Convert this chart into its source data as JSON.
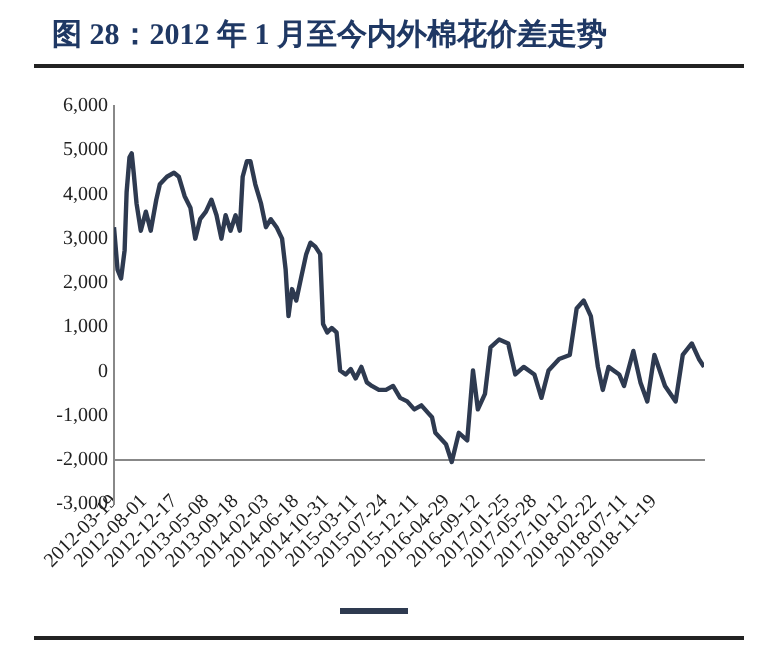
{
  "chart_data": {
    "type": "line",
    "title": "图 28：2012 年 1 月至今内外棉花价差走势",
    "x": [
      "2012-03-19",
      "2012-04-04",
      "2012-04-20",
      "2012-05-06",
      "2012-05-15",
      "2012-05-28",
      "2012-06-07",
      "2012-06-16",
      "2012-06-29",
      "2012-07-18",
      "2012-08-10",
      "2012-09-01",
      "2012-09-26",
      "2012-10-12",
      "2012-11-13",
      "2012-12-15",
      "2013-01-06",
      "2013-02-01",
      "2013-02-27",
      "2013-03-21",
      "2013-04-12",
      "2013-05-08",
      "2013-06-02",
      "2013-06-25",
      "2013-07-17",
      "2013-08-05",
      "2013-08-27",
      "2013-09-19",
      "2013-10-08",
      "2013-10-21",
      "2013-11-09",
      "2013-11-25",
      "2013-12-17",
      "2014-01-12",
      "2014-02-03",
      "2014-02-25",
      "2014-03-23",
      "2014-04-17",
      "2014-05-03",
      "2014-05-16",
      "2014-06-01",
      "2014-06-20",
      "2014-07-12",
      "2014-08-04",
      "2014-08-23",
      "2014-09-14",
      "2014-10-06",
      "2014-10-19",
      "2014-11-07",
      "2014-11-27",
      "2014-12-19",
      "2015-01-04",
      "2015-01-29",
      "2015-02-21",
      "2015-03-15",
      "2015-04-10",
      "2015-05-05",
      "2015-05-27",
      "2015-06-28",
      "2015-07-30",
      "2015-08-31",
      "2015-10-02",
      "2015-11-03",
      "2015-12-05",
      "2016-01-06",
      "2016-02-07",
      "2016-02-23",
      "2016-03-09",
      "2016-04-26",
      "2016-05-22",
      "2016-06-23",
      "2016-07-31",
      "2016-08-26",
      "2016-09-17",
      "2016-10-19",
      "2016-11-13",
      "2016-12-22",
      "2017-02-01",
      "2017-03-05",
      "2017-04-12",
      "2017-05-30",
      "2017-07-01",
      "2017-08-02",
      "2017-09-19",
      "2017-11-06",
      "2017-12-07",
      "2018-01-08",
      "2018-02-09",
      "2018-03-13",
      "2018-04-04",
      "2018-04-30",
      "2018-06-17",
      "2018-07-09",
      "2018-08-20",
      "2018-09-21",
      "2018-10-22",
      "2018-11-23",
      "2019-01-10",
      "2019-02-27",
      "2019-03-31",
      "2019-05-11",
      "2019-06-12",
      "2019-07-05"
    ],
    "series": [
      {
        "color": "#2e3a50",
        "values": [
          3260,
          2300,
          2100,
          2740,
          4050,
          4840,
          4930,
          4490,
          3790,
          3180,
          3610,
          3180,
          3880,
          4230,
          4400,
          4490,
          4400,
          3960,
          3700,
          3000,
          3440,
          3610,
          3880,
          3530,
          3000,
          3530,
          3180,
          3530,
          3180,
          4400,
          4750,
          4750,
          4230,
          3790,
          3260,
          3440,
          3260,
          3000,
          2300,
          1250,
          1860,
          1600,
          2120,
          2650,
          2910,
          2820,
          2650,
          1070,
          880,
          980,
          880,
          20,
          -70,
          50,
          -160,
          100,
          -250,
          -330,
          -420,
          -420,
          -330,
          -600,
          -680,
          -860,
          -770,
          -950,
          -1040,
          -1390,
          -1650,
          -2050,
          -1390,
          -1560,
          20,
          -860,
          -510,
          540,
          720,
          630,
          -70,
          100,
          -70,
          -600,
          20,
          280,
          370,
          1420,
          1600,
          1250,
          100,
          -420,
          100,
          -70,
          -330,
          460,
          -250,
          -680,
          370,
          -330,
          -680,
          370,
          630,
          280,
          100
        ]
      }
    ],
    "xlim": [
      "2012-03-19",
      "2019-07-05"
    ],
    "xticks": [
      "2012-03-19",
      "2012-08-01",
      "2012-12-17",
      "2013-05-08",
      "2013-09-18",
      "2014-02-03",
      "2014-06-18",
      "2014-10-31",
      "2015-03-11",
      "2015-07-24",
      "2015-12-11",
      "2016-04-29",
      "2016-09-12",
      "2017-01-25",
      "2017-05-28",
      "2017-10-12",
      "2018-02-22",
      "2018-07-11",
      "2018-11-19"
    ],
    "ylim": [
      -3000,
      6000
    ],
    "yticks": [
      {
        "value": -3000,
        "label": "-3,000"
      },
      {
        "value": -2000,
        "label": "-2,000"
      },
      {
        "value": -1000,
        "label": "-1,000"
      },
      0,
      {
        "value": 1000,
        "label": "1,000"
      },
      {
        "value": 2000,
        "label": "2,000"
      },
      {
        "value": 3000,
        "label": "3,000"
      },
      {
        "value": 4000,
        "label": "4,000"
      },
      {
        "value": 5000,
        "label": "5,000"
      },
      {
        "value": 6000,
        "label": "6,000"
      }
    ],
    "grid": false,
    "marker": "none",
    "line_style": "solid"
  }
}
